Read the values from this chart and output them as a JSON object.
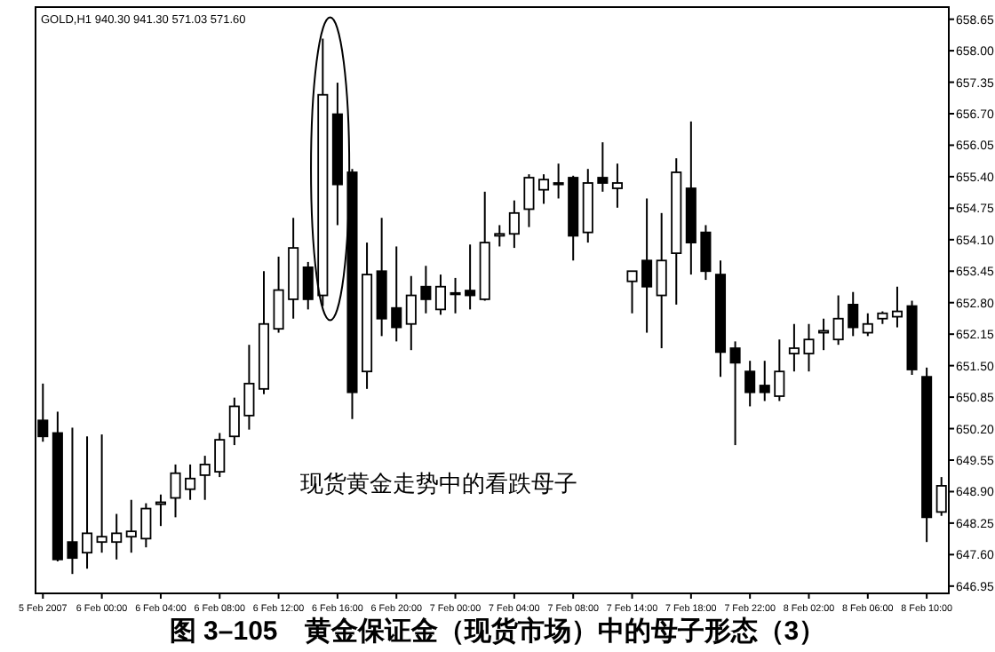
{
  "chart_data": {
    "type": "candlestick",
    "title": "图 3–105　黄金保证金（现货市场）中的母子形态（3）",
    "annotations": [
      "GOLD,H1 940.30 941.30 571.03 571.60",
      "现货黄金走势中的看跌母子"
    ],
    "categories": [
      "5 Feb 2007",
      null,
      null,
      null,
      "6 Feb 00:00",
      null,
      null,
      null,
      "6 Feb 04:00",
      null,
      null,
      null,
      "6 Feb 08:00",
      null,
      null,
      null,
      "6 Feb 12:00",
      null,
      null,
      null,
      "6 Feb 16:00",
      null,
      null,
      null,
      "6 Feb 20:00",
      null,
      null,
      null,
      "7 Feb 00:00",
      null,
      null,
      null,
      "7 Feb 04:00",
      null,
      null,
      null,
      "7 Feb 08:00",
      null,
      null,
      null,
      "7 Feb 14:00",
      null,
      null,
      null,
      "7 Feb 18:00",
      null,
      null,
      null,
      "7 Feb 22:00",
      null,
      null,
      null,
      "8 Feb 02:00",
      null,
      null,
      null,
      "8 Feb 06:00",
      null,
      null,
      null,
      "8 Feb 10:00",
      null
    ],
    "ohlc": [
      [
        650.37,
        651.13,
        649.93,
        650.04
      ],
      [
        650.11,
        650.55,
        647.46,
        647.5
      ],
      [
        647.86,
        650.22,
        647.2,
        647.53
      ],
      [
        647.64,
        650.04,
        647.31,
        648.04
      ],
      [
        647.86,
        650.08,
        647.64,
        647.97
      ],
      [
        647.86,
        648.44,
        647.5,
        648.04
      ],
      [
        647.97,
        648.73,
        647.64,
        648.08
      ],
      [
        647.93,
        648.66,
        647.75,
        648.55
      ],
      [
        648.64,
        648.84,
        648.19,
        648.68
      ],
      [
        648.77,
        649.46,
        648.37,
        649.28
      ],
      [
        648.95,
        649.46,
        648.73,
        649.17
      ],
      [
        649.24,
        649.64,
        648.73,
        649.46
      ],
      [
        649.31,
        650.11,
        649.2,
        649.97
      ],
      [
        650.04,
        650.84,
        649.86,
        650.66
      ],
      [
        650.47,
        651.93,
        650.18,
        651.13
      ],
      [
        651.02,
        653.45,
        650.91,
        652.36
      ],
      [
        652.26,
        653.75,
        652.18,
        653.06
      ],
      [
        652.87,
        654.55,
        652.47,
        653.93
      ],
      [
        653.53,
        653.64,
        652.66,
        652.87
      ],
      [
        652.95,
        658.25,
        652.73,
        657.09
      ],
      [
        656.69,
        657.34,
        654.4,
        655.24
      ],
      [
        655.49,
        655.56,
        650.4,
        650.95
      ],
      [
        651.38,
        654.04,
        651.02,
        653.38
      ],
      [
        653.45,
        654.55,
        652.11,
        652.47
      ],
      [
        652.69,
        653.96,
        652.0,
        652.29
      ],
      [
        652.36,
        653.35,
        651.82,
        652.95
      ],
      [
        653.13,
        653.56,
        652.58,
        652.87
      ],
      [
        652.66,
        653.38,
        652.55,
        653.13
      ],
      [
        652.98,
        653.31,
        652.58,
        653.0
      ],
      [
        653.05,
        654.0,
        652.66,
        652.95
      ],
      [
        652.87,
        655.09,
        652.84,
        654.04
      ],
      [
        654.18,
        654.4,
        653.96,
        654.22
      ],
      [
        654.22,
        654.91,
        653.93,
        654.65
      ],
      [
        654.73,
        655.45,
        654.36,
        655.38
      ],
      [
        655.13,
        655.45,
        654.84,
        655.34
      ],
      [
        655.24,
        655.67,
        654.95,
        655.27
      ],
      [
        655.38,
        655.42,
        653.67,
        654.18
      ],
      [
        654.25,
        655.56,
        654.04,
        655.27
      ],
      [
        655.38,
        656.11,
        655.09,
        655.27
      ],
      [
        655.16,
        655.67,
        654.76,
        655.27
      ],
      [
        653.24,
        653.45,
        652.58,
        653.45
      ],
      [
        653.67,
        654.95,
        652.18,
        653.13
      ],
      [
        652.95,
        654.65,
        651.86,
        653.67
      ],
      [
        653.82,
        655.78,
        652.76,
        655.49
      ],
      [
        655.16,
        656.54,
        653.38,
        654.04
      ],
      [
        654.25,
        654.4,
        653.27,
        653.45
      ],
      [
        653.38,
        653.67,
        651.27,
        651.78
      ],
      [
        651.86,
        652.0,
        649.86,
        651.56
      ],
      [
        651.38,
        651.6,
        650.66,
        650.95
      ],
      [
        651.09,
        651.6,
        650.77,
        650.95
      ],
      [
        650.87,
        652.04,
        650.77,
        651.38
      ],
      [
        651.75,
        652.36,
        651.38,
        651.86
      ],
      [
        651.75,
        652.36,
        651.38,
        652.04
      ],
      [
        652.18,
        652.47,
        651.82,
        652.22
      ],
      [
        652.04,
        652.95,
        651.93,
        652.47
      ],
      [
        652.76,
        653.02,
        652.11,
        652.29
      ],
      [
        652.18,
        652.58,
        652.11,
        652.36
      ],
      [
        652.47,
        652.62,
        652.36,
        652.58
      ],
      [
        652.51,
        653.13,
        652.29,
        652.62
      ],
      [
        652.73,
        652.84,
        651.31,
        651.42
      ],
      [
        651.27,
        651.46,
        647.86,
        648.37
      ],
      [
        648.48,
        649.2,
        648.4,
        649.02
      ]
    ],
    "ylim": [
      646.8,
      658.9
    ],
    "yticks": [
      646.95,
      {
        "value": 647.6,
        "label": "647.60"
      },
      648.25,
      {
        "value": 648.9,
        "label": "648.90"
      },
      649.55,
      {
        "value": 650.2,
        "label": "650.20"
      },
      650.85,
      {
        "value": 651.5,
        "label": "651.50"
      },
      652.15,
      {
        "value": 652.8,
        "label": "652.80"
      },
      653.45,
      {
        "value": 654.1,
        "label": "654.10"
      },
      654.75,
      {
        "value": 655.4,
        "label": "655.40"
      },
      656.05,
      {
        "value": 656.7,
        "label": "656.70"
      },
      657.35,
      {
        "value": 658.0,
        "label": "658.00"
      },
      658.65
    ]
  }
}
